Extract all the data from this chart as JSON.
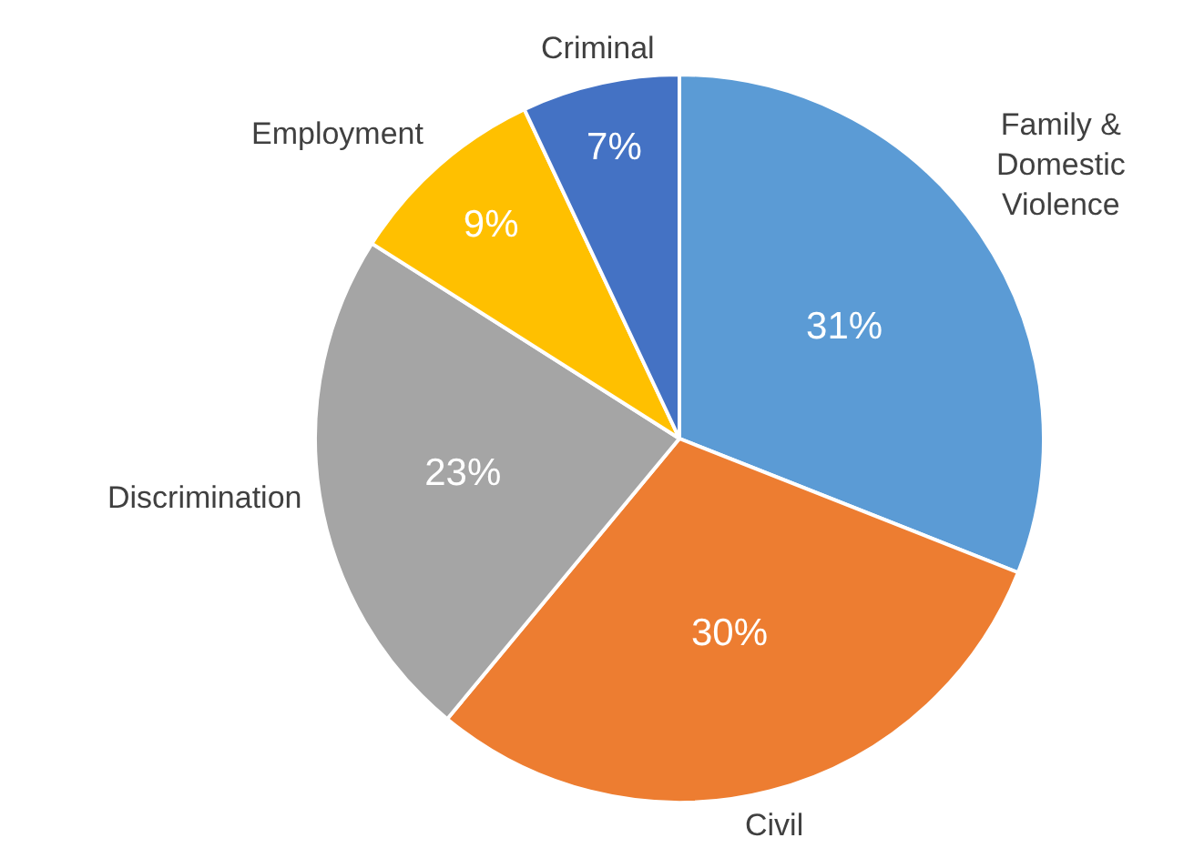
{
  "chart_data": {
    "type": "pie",
    "categories": [
      "Family &\nDomestic\nViolence",
      "Civil",
      "Discrimination",
      "Employment",
      "Criminal"
    ],
    "values": [
      31,
      30,
      23,
      9,
      7
    ],
    "value_labels": [
      "31%",
      "30%",
      "23%",
      "9%",
      "7%"
    ],
    "colors": [
      "#5b9bd5",
      "#ed7d31",
      "#a5a5a5",
      "#ffc000",
      "#4472c4"
    ],
    "legend": false
  }
}
